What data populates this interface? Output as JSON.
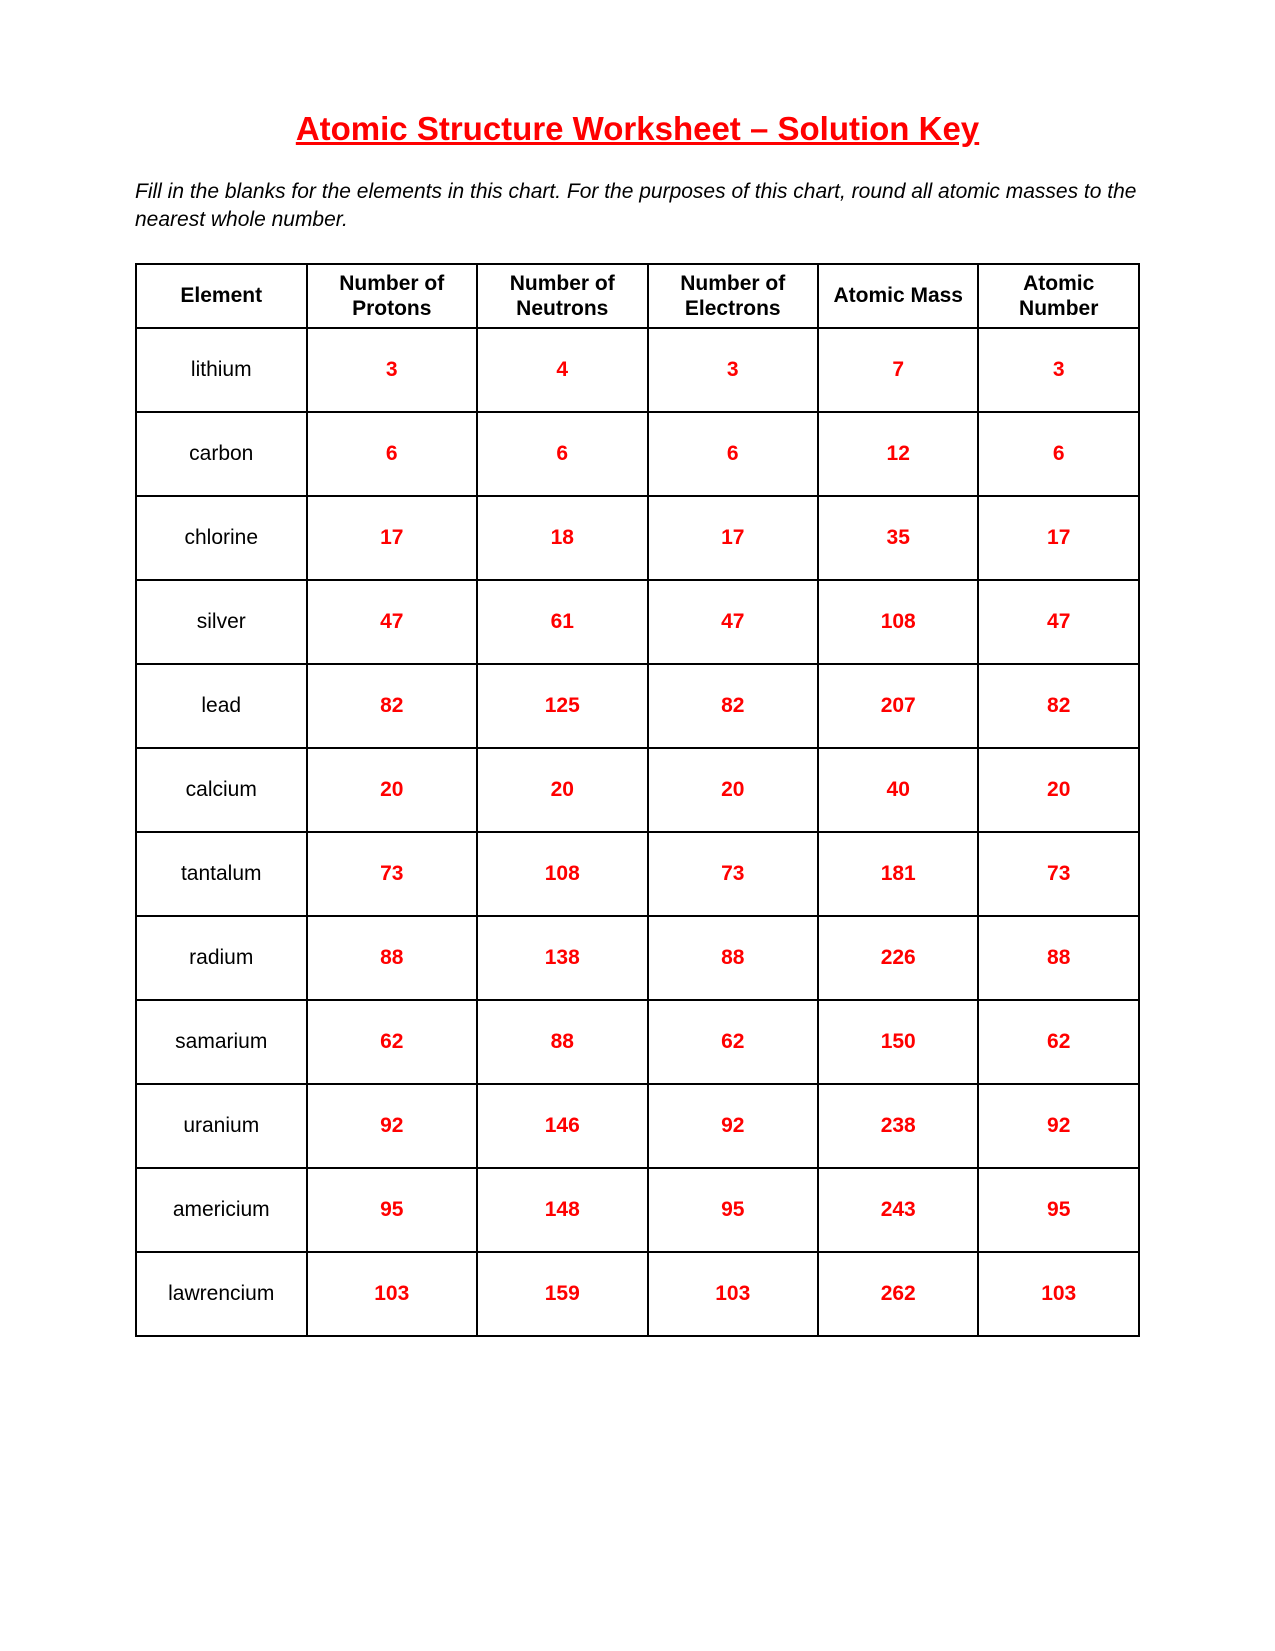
{
  "title": "Atomic Structure Worksheet – Solution Key",
  "instructions": "Fill in the blanks for the elements in this chart.  For the purposes of this chart, round all atomic masses to the nearest whole number.",
  "colors": {
    "title_color": "#ff0000",
    "value_color": "#ff0000",
    "text_color": "#000000",
    "border_color": "#000000",
    "background": "#ffffff"
  },
  "fonts": {
    "family": "Arial",
    "title_size_pt": 24,
    "body_size_pt": 16,
    "title_weight": "bold",
    "value_weight": "bold"
  },
  "table": {
    "columns": [
      "Element",
      "Number of Protons",
      "Number of Neutrons",
      "Number of Electrons",
      "Atomic Mass",
      "Atomic Number"
    ],
    "rows": [
      {
        "element": "lithium",
        "protons": "3",
        "neutrons": "4",
        "electrons": "3",
        "mass": "7",
        "number": "3"
      },
      {
        "element": "carbon",
        "protons": "6",
        "neutrons": "6",
        "electrons": "6",
        "mass": "12",
        "number": "6"
      },
      {
        "element": "chlorine",
        "protons": "17",
        "neutrons": "18",
        "electrons": "17",
        "mass": "35",
        "number": "17"
      },
      {
        "element": "silver",
        "protons": "47",
        "neutrons": "61",
        "electrons": "47",
        "mass": "108",
        "number": "47"
      },
      {
        "element": "lead",
        "protons": "82",
        "neutrons": "125",
        "electrons": "82",
        "mass": "207",
        "number": "82"
      },
      {
        "element": "calcium",
        "protons": "20",
        "neutrons": "20",
        "electrons": "20",
        "mass": "40",
        "number": "20"
      },
      {
        "element": "tantalum",
        "protons": "73",
        "neutrons": "108",
        "electrons": "73",
        "mass": "181",
        "number": "73"
      },
      {
        "element": "radium",
        "protons": "88",
        "neutrons": "138",
        "electrons": "88",
        "mass": "226",
        "number": "88"
      },
      {
        "element": "samarium",
        "protons": "62",
        "neutrons": "88",
        "electrons": "62",
        "mass": "150",
        "number": "62"
      },
      {
        "element": "uranium",
        "protons": "92",
        "neutrons": "146",
        "electrons": "92",
        "mass": "238",
        "number": "92"
      },
      {
        "element": "americium",
        "protons": "95",
        "neutrons": "148",
        "electrons": "95",
        "mass": "243",
        "number": "95"
      },
      {
        "element": "lawrencium",
        "protons": "103",
        "neutrons": "159",
        "electrons": "103",
        "mass": "262",
        "number": "103"
      }
    ]
  }
}
